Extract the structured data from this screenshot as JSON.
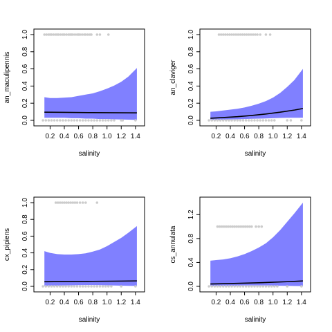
{
  "chart_data": [
    {
      "type": "area",
      "xlabel": "salinity",
      "ylabel": "an_maculipennis",
      "xlim": [
        0.05,
        1.45
      ],
      "ylim": [
        0,
        1.0
      ],
      "xticks": [
        "0.2",
        "0.4",
        "0.6",
        "0.8",
        "1.0",
        "1.2",
        "1.4"
      ],
      "yticks": [
        "0.0",
        "0.2",
        "0.4",
        "0.6",
        "0.8",
        "1.0"
      ],
      "band": {
        "color": "#8080ff",
        "x": [
          0.12,
          0.2,
          0.3,
          0.4,
          0.5,
          0.6,
          0.7,
          0.8,
          0.9,
          1.0,
          1.1,
          1.2,
          1.3,
          1.42
        ],
        "upper": [
          0.27,
          0.26,
          0.26,
          0.265,
          0.27,
          0.285,
          0.3,
          0.315,
          0.34,
          0.37,
          0.405,
          0.45,
          0.51,
          0.61
        ],
        "lower": [
          0.03,
          0.03,
          0.03,
          0.03,
          0.025,
          0.025,
          0.02,
          0.02,
          0.015,
          0.015,
          0.012,
          0.01,
          0.008,
          0.005
        ]
      },
      "fit": {
        "color": "#000000",
        "x": [
          0.12,
          0.4,
          0.8,
          1.2,
          1.42
        ],
        "y": [
          0.095,
          0.093,
          0.09,
          0.088,
          0.087
        ]
      },
      "points": {
        "color": "#cccccc",
        "top_x": [
          0.12,
          0.15,
          0.18,
          0.2,
          0.22,
          0.25,
          0.28,
          0.3,
          0.32,
          0.35,
          0.38,
          0.4,
          0.43,
          0.46,
          0.48,
          0.5,
          0.52,
          0.55,
          0.58,
          0.6,
          0.62,
          0.65,
          0.68,
          0.7,
          0.73,
          0.76,
          0.78,
          0.86,
          0.9,
          1.02
        ],
        "bottom_x": [
          0.1,
          0.14,
          0.18,
          0.22,
          0.26,
          0.3,
          0.34,
          0.38,
          0.42,
          0.46,
          0.5,
          0.54,
          0.58,
          0.62,
          0.66,
          0.7,
          0.74,
          0.78,
          0.82,
          0.86,
          0.9,
          0.94,
          0.98,
          1.02,
          1.06,
          1.1,
          1.2,
          1.22,
          1.4
        ]
      }
    },
    {
      "type": "area",
      "xlabel": "salinity",
      "ylabel": "an_claviger",
      "xlim": [
        0.05,
        1.45
      ],
      "ylim": [
        0,
        1.0
      ],
      "xticks": [
        "0.2",
        "0.4",
        "0.6",
        "0.8",
        "1.0",
        "1.2",
        "1.4"
      ],
      "yticks": [
        "0.0",
        "0.2",
        "0.4",
        "0.6",
        "0.8",
        "1.0"
      ],
      "band": {
        "color": "#8080ff",
        "x": [
          0.12,
          0.2,
          0.3,
          0.4,
          0.5,
          0.6,
          0.7,
          0.8,
          0.9,
          1.0,
          1.1,
          1.2,
          1.3,
          1.42
        ],
        "upper": [
          0.1,
          0.105,
          0.115,
          0.125,
          0.135,
          0.15,
          0.17,
          0.195,
          0.225,
          0.265,
          0.32,
          0.39,
          0.47,
          0.6
        ],
        "lower": [
          0.005,
          0.006,
          0.008,
          0.01,
          0.012,
          0.015,
          0.018,
          0.02,
          0.022,
          0.025,
          0.028,
          0.03,
          0.03,
          0.03
        ]
      },
      "fit": {
        "color": "#000000",
        "x": [
          0.12,
          0.3,
          0.5,
          0.7,
          0.9,
          1.1,
          1.3,
          1.42
        ],
        "y": [
          0.025,
          0.033,
          0.043,
          0.057,
          0.074,
          0.095,
          0.12,
          0.138
        ]
      },
      "points": {
        "color": "#cccccc",
        "top_x": [
          0.24,
          0.27,
          0.3,
          0.33,
          0.36,
          0.39,
          0.42,
          0.45,
          0.48,
          0.51,
          0.54,
          0.57,
          0.6,
          0.63,
          0.66,
          0.69,
          0.72,
          0.75,
          0.78,
          0.82,
          0.9,
          0.96
        ],
        "bottom_x": [
          0.1,
          0.14,
          0.18,
          0.22,
          0.26,
          0.3,
          0.34,
          0.38,
          0.42,
          0.46,
          0.5,
          0.54,
          0.58,
          0.62,
          0.66,
          0.7,
          0.74,
          0.78,
          0.82,
          0.86,
          0.9,
          0.94,
          0.98,
          1.02,
          1.2,
          1.25,
          1.4
        ]
      }
    },
    {
      "type": "area",
      "xlabel": "salinity",
      "ylabel": "cx_pipiens",
      "xlim": [
        0.05,
        1.45
      ],
      "ylim": [
        0,
        1.0
      ],
      "xticks": [
        "0.2",
        "0.4",
        "0.6",
        "0.8",
        "1.0",
        "1.2",
        "1.4"
      ],
      "yticks": [
        "0.0",
        "0.2",
        "0.4",
        "0.6",
        "0.8",
        "1.0"
      ],
      "band": {
        "color": "#8080ff",
        "x": [
          0.12,
          0.2,
          0.3,
          0.4,
          0.5,
          0.6,
          0.7,
          0.8,
          0.9,
          1.0,
          1.1,
          1.2,
          1.3,
          1.42
        ],
        "upper": [
          0.42,
          0.4,
          0.385,
          0.38,
          0.38,
          0.385,
          0.395,
          0.415,
          0.44,
          0.48,
          0.53,
          0.58,
          0.64,
          0.72
        ],
        "lower": [
          0.005,
          0.006,
          0.008,
          0.01,
          0.012,
          0.014,
          0.015,
          0.015,
          0.014,
          0.012,
          0.01,
          0.008,
          0.006,
          0.005
        ]
      },
      "fit": {
        "color": "#000000",
        "x": [
          0.12,
          0.4,
          0.8,
          1.2,
          1.42
        ],
        "y": [
          0.055,
          0.057,
          0.06,
          0.063,
          0.065
        ]
      },
      "points": {
        "color": "#cccccc",
        "top_x": [
          0.28,
          0.31,
          0.34,
          0.37,
          0.4,
          0.43,
          0.46,
          0.49,
          0.52,
          0.55,
          0.58,
          0.62,
          0.66,
          0.7,
          0.86
        ],
        "bottom_x": [
          0.1,
          0.14,
          0.18,
          0.22,
          0.26,
          0.3,
          0.34,
          0.38,
          0.42,
          0.46,
          0.5,
          0.54,
          0.58,
          0.62,
          0.66,
          0.7,
          0.74,
          0.78,
          0.82,
          0.86,
          0.9,
          0.94,
          0.98,
          1.02,
          1.06,
          1.2,
          1.4
        ]
      }
    },
    {
      "type": "area",
      "xlabel": "salinity",
      "ylabel": "cs_annulata",
      "xlim": [
        0.05,
        1.45
      ],
      "ylim": [
        0,
        1.4
      ],
      "xticks": [
        "0.2",
        "0.4",
        "0.6",
        "0.8",
        "1.0",
        "1.2",
        "1.4"
      ],
      "yticks": [
        "0.0",
        "0.4",
        "0.8",
        "1.2"
      ],
      "band": {
        "color": "#8080ff",
        "x": [
          0.12,
          0.2,
          0.3,
          0.4,
          0.5,
          0.6,
          0.7,
          0.8,
          0.9,
          1.0,
          1.1,
          1.2,
          1.3,
          1.42
        ],
        "upper": [
          0.43,
          0.44,
          0.45,
          0.47,
          0.5,
          0.54,
          0.59,
          0.65,
          0.72,
          0.82,
          0.94,
          1.08,
          1.22,
          1.4
        ],
        "lower": [
          0.005,
          0.006,
          0.008,
          0.01,
          0.012,
          0.014,
          0.015,
          0.015,
          0.014,
          0.012,
          0.01,
          0.008,
          0.006,
          0.005
        ]
      },
      "fit": {
        "color": "#000000",
        "x": [
          0.12,
          0.4,
          0.8,
          1.2,
          1.42
        ],
        "y": [
          0.04,
          0.047,
          0.06,
          0.078,
          0.09
        ]
      },
      "points": {
        "color": "#cccccc",
        "top_x": [
          0.22,
          0.25,
          0.28,
          0.31,
          0.34,
          0.37,
          0.4,
          0.43,
          0.46,
          0.49,
          0.52,
          0.55,
          0.58,
          0.61,
          0.64,
          0.67,
          0.7,
          0.76,
          0.8,
          0.84
        ],
        "bottom_x": [
          0.1,
          0.14,
          0.18,
          0.22,
          0.26,
          0.3,
          0.34,
          0.38,
          0.42,
          0.46,
          0.5,
          0.54,
          0.58,
          0.62,
          0.66,
          0.7,
          0.74,
          0.78,
          0.82,
          0.86,
          0.9,
          0.94,
          0.98,
          1.02,
          1.06,
          1.2,
          1.4
        ]
      }
    }
  ]
}
